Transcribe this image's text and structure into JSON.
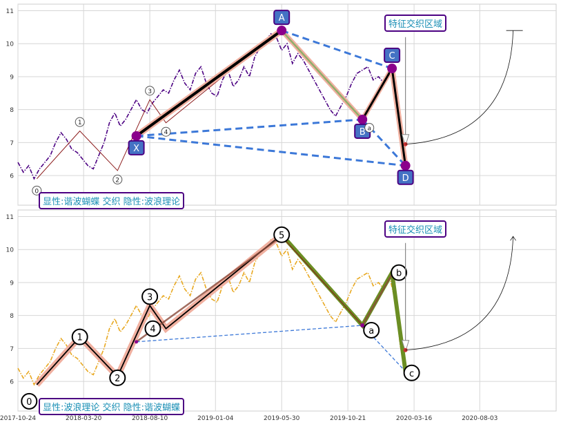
{
  "chart_data": [
    {
      "type": "line",
      "title": "",
      "ylim": [
        5.1,
        11.2
      ],
      "yticks": [
        6,
        7,
        8,
        9,
        10,
        11
      ],
      "grid": true,
      "annotation_box": "显性:谐波蝴蝶 交织 隐性:波浪理论",
      "zone_label": "特征交织区域",
      "price_color": "#4b0082",
      "price_style": "dash-dot",
      "price_series": [
        [
          0.0,
          6.4
        ],
        [
          0.01,
          6.1
        ],
        [
          0.02,
          6.3
        ],
        [
          0.03,
          5.9
        ],
        [
          0.04,
          6.2
        ],
        [
          0.05,
          6.4
        ],
        [
          0.06,
          6.6
        ],
        [
          0.07,
          7.0
        ],
        [
          0.08,
          7.3
        ],
        [
          0.09,
          7.1
        ],
        [
          0.1,
          6.8
        ],
        [
          0.11,
          6.7
        ],
        [
          0.12,
          6.5
        ],
        [
          0.13,
          6.3
        ],
        [
          0.14,
          6.2
        ],
        [
          0.15,
          6.6
        ],
        [
          0.16,
          7.0
        ],
        [
          0.17,
          7.6
        ],
        [
          0.18,
          7.9
        ],
        [
          0.19,
          7.5
        ],
        [
          0.2,
          7.7
        ],
        [
          0.21,
          8.0
        ],
        [
          0.22,
          8.3
        ],
        [
          0.23,
          8.0
        ],
        [
          0.24,
          7.9
        ],
        [
          0.25,
          8.2
        ],
        [
          0.26,
          8.4
        ],
        [
          0.27,
          8.6
        ],
        [
          0.28,
          8.5
        ],
        [
          0.29,
          8.9
        ],
        [
          0.3,
          9.2
        ],
        [
          0.31,
          8.8
        ],
        [
          0.32,
          8.6
        ],
        [
          0.33,
          9.1
        ],
        [
          0.34,
          9.3
        ],
        [
          0.35,
          8.8
        ],
        [
          0.36,
          8.5
        ],
        [
          0.37,
          8.4
        ],
        [
          0.38,
          8.9
        ],
        [
          0.39,
          9.2
        ],
        [
          0.4,
          8.7
        ],
        [
          0.41,
          8.9
        ],
        [
          0.42,
          9.3
        ],
        [
          0.43,
          9.0
        ],
        [
          0.44,
          9.6
        ],
        [
          0.45,
          9.9
        ],
        [
          0.46,
          10.1
        ],
        [
          0.47,
          10.3
        ],
        [
          0.48,
          10.2
        ],
        [
          0.49,
          9.8
        ],
        [
          0.5,
          10.0
        ],
        [
          0.51,
          9.4
        ],
        [
          0.52,
          9.7
        ],
        [
          0.53,
          9.5
        ],
        [
          0.54,
          9.2
        ],
        [
          0.55,
          8.9
        ],
        [
          0.56,
          8.6
        ],
        [
          0.57,
          8.3
        ],
        [
          0.58,
          8.0
        ],
        [
          0.59,
          7.8
        ],
        [
          0.6,
          8.1
        ],
        [
          0.61,
          8.4
        ],
        [
          0.62,
          8.8
        ],
        [
          0.63,
          9.1
        ],
        [
          0.64,
          9.2
        ],
        [
          0.65,
          9.3
        ],
        [
          0.66,
          8.9
        ],
        [
          0.67,
          9.0
        ],
        [
          0.68,
          8.8
        ],
        [
          0.69,
          9.2
        ],
        [
          0.7,
          8.5
        ],
        [
          0.705,
          7.9
        ],
        [
          0.71,
          7.1
        ],
        [
          0.715,
          6.7
        ],
        [
          0.72,
          6.3
        ]
      ],
      "wave_points": [
        {
          "label": "0",
          "x": 0.035,
          "y": 5.9
        },
        {
          "label": "1",
          "x": 0.115,
          "y": 7.35
        },
        {
          "label": "2",
          "x": 0.185,
          "y": 6.15
        },
        {
          "label": "3",
          "x": 0.245,
          "y": 8.3
        },
        {
          "label": "4",
          "x": 0.275,
          "y": 7.6
        },
        {
          "label": "5",
          "x": 0.49,
          "y": 10.45
        },
        {
          "label": "a",
          "x": 0.64,
          "y": 7.7
        },
        {
          "label": "b",
          "x": 0.695,
          "y": 9.3
        },
        {
          "label": "c",
          "x": 0.72,
          "y": 6.3
        }
      ],
      "harmonic_points": [
        {
          "label": "X",
          "x": 0.22,
          "y": 7.2
        },
        {
          "label": "A",
          "x": 0.49,
          "y": 10.4
        },
        {
          "label": "B",
          "x": 0.64,
          "y": 7.7
        },
        {
          "label": "C",
          "x": 0.695,
          "y": 9.25
        },
        {
          "label": "D",
          "x": 0.72,
          "y": 6.3
        }
      ],
      "zone_marker": {
        "x": 0.72,
        "y_from": 6.95,
        "y_to": 10.2
      },
      "projection": {
        "from": [
          0.72,
          6.95
        ],
        "to": [
          0.92,
          10.4
        ]
      }
    },
    {
      "type": "line",
      "title": "",
      "ylim": [
        5.1,
        11.2
      ],
      "yticks": [
        6,
        7,
        8,
        9,
        10,
        11
      ],
      "grid": true,
      "annotation_box": "显性:波浪理论 交织 隐性:谐波蝴蝶",
      "zone_label": "特征交织区域",
      "price_color": "#e8a820",
      "price_style": "dash-dot",
      "wave_labels": [
        "0",
        "1",
        "2",
        "3",
        "4",
        "5",
        "a",
        "b",
        "c"
      ],
      "x_tick_labels": [
        "2017-10-24",
        "2018-03-20",
        "2018-08-10",
        "2019-01-04",
        "2019-05-30",
        "2019-10-21",
        "2020-03-16",
        "2020-08-03"
      ]
    }
  ]
}
